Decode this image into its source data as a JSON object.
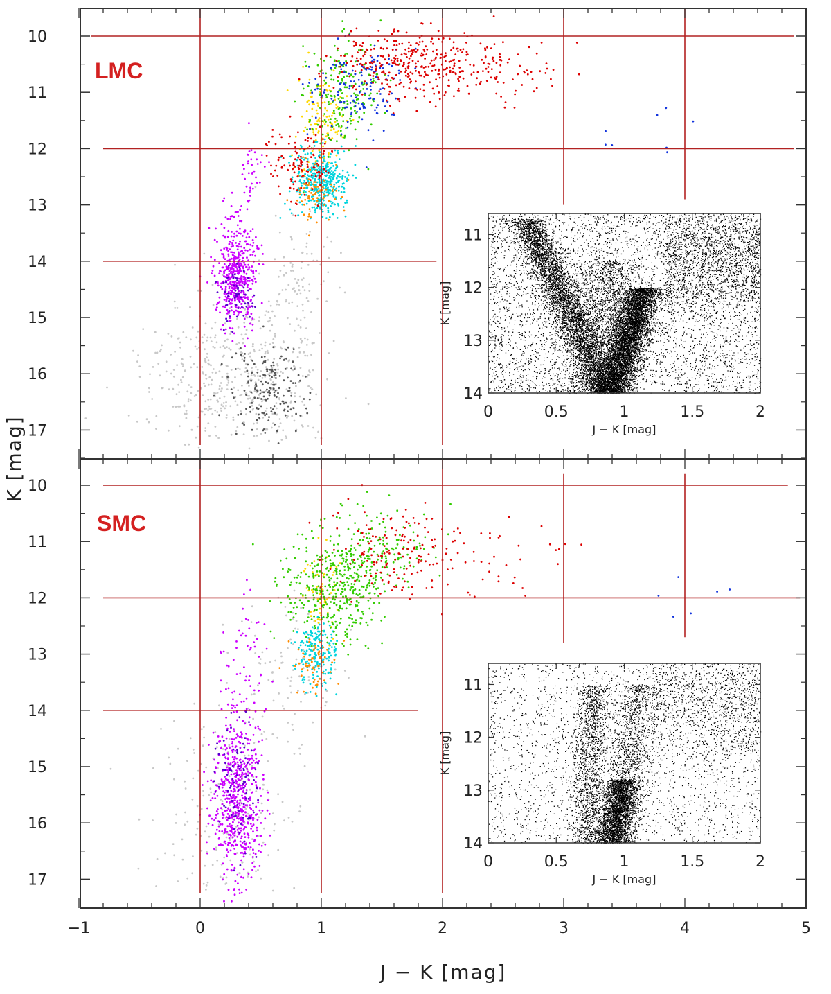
{
  "chart_data": [
    {
      "type": "scatter",
      "panel_label": "LMC",
      "xlabel": "J − K [mag]",
      "ylabel": "K [mag]",
      "xlim": [
        -1,
        5
      ],
      "ylim": [
        17.5,
        9.5
      ],
      "y_inverted": true,
      "x_ticks": [
        "−1",
        "0",
        "1",
        "2",
        "3",
        "4",
        "5"
      ],
      "y_ticks": [
        "10",
        "11",
        "12",
        "13",
        "14",
        "15",
        "16",
        "17"
      ],
      "grid_lines": {
        "vertical": [
          {
            "x": 0,
            "y_from": 9.5,
            "y_to": 17.5
          },
          {
            "x": 1,
            "y_from": 9.5,
            "y_to": 17.5
          },
          {
            "x": 2,
            "y_from": 9.5,
            "y_to": 17.5
          },
          {
            "x": 3,
            "y_from": 9.5,
            "y_to": 13.0
          },
          {
            "x": 4,
            "y_from": 9.5,
            "y_to": 12.9
          }
        ],
        "horizontal": [
          {
            "y": 10,
            "x_from": -0.9,
            "x_to": 4.9
          },
          {
            "y": 12,
            "x_from": -0.8,
            "x_to": 4.9
          },
          {
            "y": 14,
            "x_from": -0.8,
            "x_to": 1.95
          }
        ],
        "color": "#b22222"
      },
      "series": [
        {
          "color": "#c8c8c8",
          "clusters": [
            {
              "cx": 0.1,
              "cy": 16.1,
              "sx": 0.3,
              "sy": 0.6,
              "n": 300
            },
            {
              "cx": 0.6,
              "cy": 15.9,
              "sx": 0.25,
              "sy": 0.8,
              "n": 250
            },
            {
              "cx": 0.8,
              "cy": 14.2,
              "sx": 0.15,
              "sy": 0.6,
              "n": 80
            }
          ]
        },
        {
          "color": "#555555",
          "clusters": [
            {
              "cx": 0.55,
              "cy": 16.3,
              "sx": 0.15,
              "sy": 0.4,
              "n": 180
            }
          ]
        },
        {
          "color": "#cc00ff",
          "clusters": [
            {
              "cx": 0.3,
              "cy": 14.2,
              "sx": 0.08,
              "sy": 0.45,
              "n": 500
            },
            {
              "cx": 0.42,
              "cy": 12.4,
              "sx": 0.05,
              "sy": 0.4,
              "n": 40
            }
          ]
        },
        {
          "color": "#5500cc",
          "clusters": [
            {
              "cx": 0.3,
              "cy": 14.6,
              "sx": 0.07,
              "sy": 0.25,
              "n": 60
            }
          ]
        },
        {
          "color": "#00d4dd",
          "clusters": [
            {
              "cx": 1.0,
              "cy": 12.6,
              "sx": 0.1,
              "sy": 0.3,
              "n": 400
            }
          ]
        },
        {
          "color": "#ff8c00",
          "clusters": [
            {
              "cx": 0.95,
              "cy": 12.8,
              "sx": 0.1,
              "sy": 0.3,
              "n": 80
            }
          ]
        },
        {
          "color": "#ffd700",
          "clusters": [
            {
              "cx": 1.0,
              "cy": 11.5,
              "sx": 0.1,
              "sy": 0.4,
              "n": 120
            }
          ]
        },
        {
          "color": "#33cc00",
          "clusters": [
            {
              "cx": 1.15,
              "cy": 11.0,
              "sx": 0.15,
              "sy": 0.5,
              "n": 200
            }
          ]
        },
        {
          "color": "#1133dd",
          "clusters": [
            {
              "cx": 1.3,
              "cy": 10.9,
              "sx": 0.2,
              "sy": 0.4,
              "n": 150
            },
            {
              "cx": 3.8,
              "cy": 11.6,
              "sx": 0.3,
              "sy": 0.3,
              "n": 8
            }
          ]
        },
        {
          "color": "#dd0000",
          "clusters": [
            {
              "cx": 1.7,
              "cy": 10.5,
              "sx": 0.3,
              "sy": 0.3,
              "n": 300
            },
            {
              "cx": 2.3,
              "cy": 10.6,
              "sx": 0.35,
              "sy": 0.35,
              "n": 120
            },
            {
              "cx": 0.85,
              "cy": 12.2,
              "sx": 0.15,
              "sy": 0.3,
              "n": 120
            }
          ]
        }
      ],
      "inset": {
        "type": "scatter",
        "xlabel": "J − K [mag]",
        "ylabel": "K [mag]",
        "xlim": [
          0,
          2
        ],
        "ylim": [
          14,
          10.6
        ],
        "x_ticks": [
          "0",
          "0.5",
          "1",
          "1.5",
          "2"
        ],
        "y_ticks": [
          "11",
          "12",
          "13",
          "14"
        ],
        "color": "#000000"
      }
    },
    {
      "type": "scatter",
      "panel_label": "SMC",
      "xlabel": "J − K [mag]",
      "ylabel": "K [mag]",
      "xlim": [
        -1,
        5
      ],
      "ylim": [
        17.5,
        9.5
      ],
      "y_inverted": true,
      "x_ticks": [
        "−1",
        "0",
        "1",
        "2",
        "3",
        "4",
        "5"
      ],
      "y_ticks": [
        "10",
        "11",
        "12",
        "13",
        "14",
        "15",
        "16",
        "17"
      ],
      "grid_lines": {
        "vertical": [
          {
            "x": 0,
            "y_from": 9.5,
            "y_to": 17.25
          },
          {
            "x": 1,
            "y_from": 9.5,
            "y_to": 17.25
          },
          {
            "x": 2,
            "y_from": 9.5,
            "y_to": 17.25
          },
          {
            "x": 3,
            "y_from": 9.8,
            "y_to": 12.8
          },
          {
            "x": 4,
            "y_from": 9.8,
            "y_to": 12.7
          }
        ],
        "horizontal": [
          {
            "y": 10,
            "x_from": -0.8,
            "x_to": 4.85
          },
          {
            "y": 12,
            "x_from": -0.8,
            "x_to": 4.95
          },
          {
            "y": 14,
            "x_from": -0.8,
            "x_to": 1.8
          }
        ],
        "color": "#b22222"
      },
      "series": [
        {
          "color": "#c8c8c8",
          "clusters": [
            {
              "cx": 0.2,
              "cy": 15.8,
              "sx": 0.3,
              "sy": 0.8,
              "n": 200
            },
            {
              "cx": 0.7,
              "cy": 13.5,
              "sx": 0.2,
              "sy": 0.8,
              "n": 100
            }
          ]
        },
        {
          "color": "#cc00ff",
          "clusters": [
            {
              "cx": 0.3,
              "cy": 15.6,
              "sx": 0.1,
              "sy": 0.7,
              "n": 600
            },
            {
              "cx": 0.35,
              "cy": 13.5,
              "sx": 0.1,
              "sy": 0.8,
              "n": 80
            }
          ]
        },
        {
          "color": "#5500cc",
          "clusters": [
            {
              "cx": 0.3,
              "cy": 15.3,
              "sx": 0.08,
              "sy": 0.6,
              "n": 90
            }
          ]
        },
        {
          "color": "#00d4dd",
          "clusters": [
            {
              "cx": 0.97,
              "cy": 13.0,
              "sx": 0.08,
              "sy": 0.3,
              "n": 200
            }
          ]
        },
        {
          "color": "#ff8c00",
          "clusters": [
            {
              "cx": 0.95,
              "cy": 13.2,
              "sx": 0.1,
              "sy": 0.25,
              "n": 60
            }
          ]
        },
        {
          "color": "#ffd700",
          "clusters": [
            {
              "cx": 1.0,
              "cy": 11.9,
              "sx": 0.08,
              "sy": 0.4,
              "n": 60
            }
          ]
        },
        {
          "color": "#33cc00",
          "clusters": [
            {
              "cx": 1.1,
              "cy": 11.8,
              "sx": 0.2,
              "sy": 0.5,
              "n": 400
            },
            {
              "cx": 1.5,
              "cy": 11.2,
              "sx": 0.2,
              "sy": 0.4,
              "n": 150
            }
          ]
        },
        {
          "color": "#1133dd",
          "clusters": [
            {
              "cx": 3.9,
              "cy": 12.1,
              "sx": 0.3,
              "sy": 0.3,
              "n": 6
            }
          ]
        },
        {
          "color": "#dd0000",
          "clusters": [
            {
              "cx": 1.6,
              "cy": 11.2,
              "sx": 0.25,
              "sy": 0.4,
              "n": 150
            },
            {
              "cx": 2.4,
              "cy": 11.3,
              "sx": 0.3,
              "sy": 0.4,
              "n": 40
            }
          ]
        }
      ],
      "inset": {
        "type": "scatter",
        "xlabel": "J − K [mag]",
        "ylabel": "K [mag]",
        "xlim": [
          0,
          2
        ],
        "ylim": [
          14,
          10.6
        ],
        "x_ticks": [
          "0",
          "0.5",
          "1",
          "1.5",
          "2"
        ],
        "y_ticks": [
          "11",
          "12",
          "13",
          "14"
        ],
        "color": "#000000"
      }
    }
  ],
  "labels": {
    "lmc": "LMC",
    "smc": "SMC",
    "x_axis": "J − K [mag]",
    "y_axis": "K [mag]",
    "inset_x_axis": "J − K [mag]",
    "inset_y_axis": "K [mag]"
  },
  "colors": {
    "panel_label": "#d42020",
    "grid_line": "#b22222",
    "frame": "#333333"
  }
}
